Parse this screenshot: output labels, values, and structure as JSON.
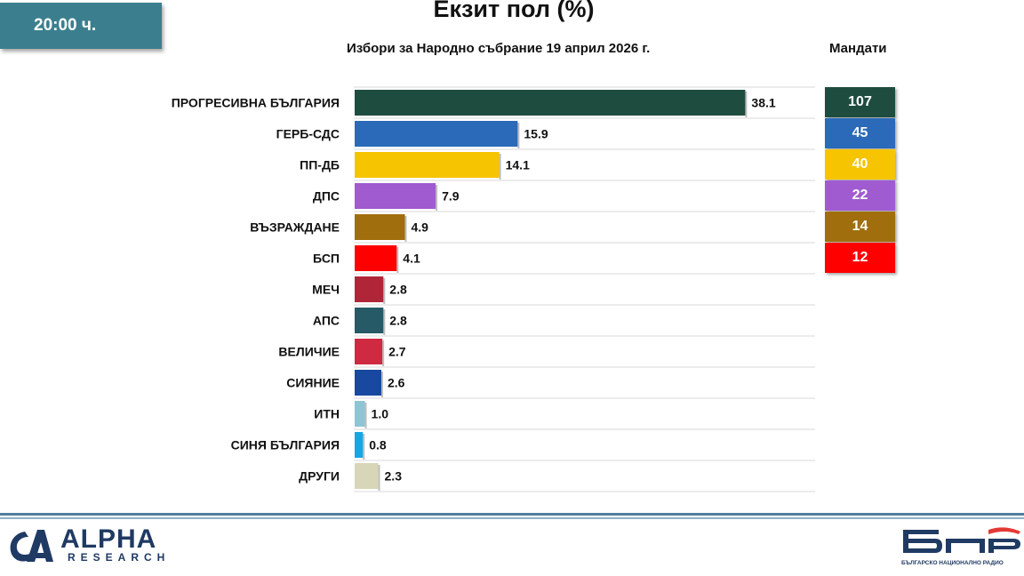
{
  "time_badge": "20:00 ч.",
  "header": {
    "title": "Екзит пол (%)",
    "subtitle": "Избори за Народно събрание 19 април 2026 г.",
    "seats_header": "Мандати"
  },
  "chart_data": {
    "type": "bar",
    "orientation": "horizontal",
    "title": "Екзит пол (%)",
    "subtitle": "Избори за Народно събрание 19 април 2026 г.",
    "categories": [
      "ПРОГРЕСИВНА БЪЛГАРИЯ",
      "ГЕРБ-СДС",
      "ПП-ДБ",
      "ДПС",
      "ВЪЗРАЖДАНЕ",
      "БСП",
      "МЕЧ",
      "АПС",
      "ВЕЛИЧИЕ",
      "СИЯНИЕ",
      "ИТН",
      "СИНЯ БЪЛГАРИЯ",
      "ДРУГИ"
    ],
    "values": [
      38.1,
      15.9,
      14.1,
      7.9,
      4.9,
      4.1,
      2.8,
      2.8,
      2.7,
      2.6,
      1.0,
      0.8,
      2.3
    ],
    "value_labels": [
      "38.1",
      "15.9",
      "14.1",
      "7.9",
      "4.9",
      "4.1",
      "2.8",
      "2.8",
      "2.7",
      "2.6",
      "1.0",
      "0.8",
      "2.3"
    ],
    "colors": [
      "#1e4d3f",
      "#2a6ab8",
      "#f6c400",
      "#a05bd0",
      "#a06e0c",
      "#ff0000",
      "#b02638",
      "#265a66",
      "#cf2a41",
      "#1848a0",
      "#8fc4d4",
      "#18a5e6",
      "#d7d6b8"
    ],
    "xlim": [
      0,
      45
    ],
    "grid": true,
    "seats": {
      "label": "Мандати",
      "parties": [
        "ПРОГРЕСИВНА БЪЛГАРИЯ",
        "ГЕРБ-СДС",
        "ПП-ДБ",
        "ДПС",
        "ВЪЗРАЖДАНЕ",
        "БСП"
      ],
      "values": [
        "107",
        "45",
        "40",
        "22",
        "14",
        "12"
      ],
      "colors": [
        "#1e4d3f",
        "#2a6ab8",
        "#f6c400",
        "#a05bd0",
        "#a06e0c",
        "#ff0000"
      ]
    }
  },
  "footer": {
    "alpha_name": "ALPHA",
    "alpha_sub": "RESEARCH",
    "bnr_sub": "БЪЛГАРСКО НАЦИОНАЛНО РАДИО"
  }
}
